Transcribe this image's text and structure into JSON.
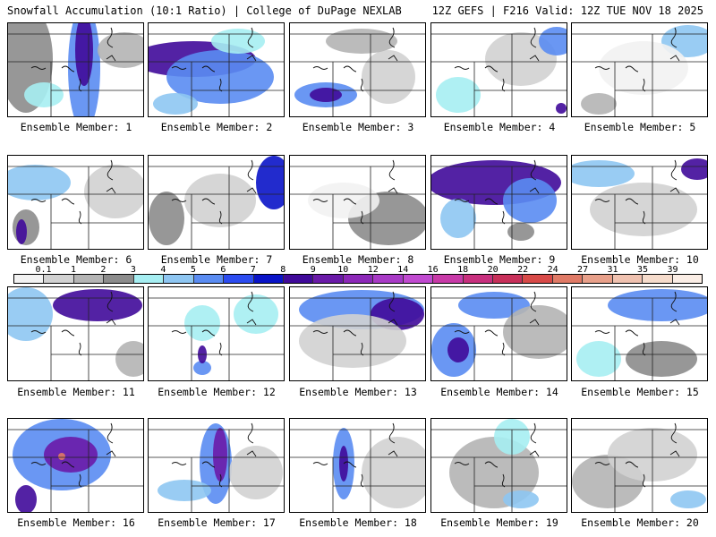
{
  "header": {
    "left": "Snowfall Accumulation (10:1 Ratio) | College of DuPage NEXLAB",
    "right": "12Z GEFS | F216 Valid: 12Z TUE NOV 18 2025"
  },
  "colorbar": {
    "labels": [
      "0.1",
      "1",
      "2",
      "3",
      "4",
      "5",
      "6",
      "7",
      "8",
      "9",
      "10",
      "12",
      "14",
      "16",
      "18",
      "20",
      "22",
      "24",
      "27",
      "31",
      "35",
      "39"
    ],
    "colors": [
      "#f2f2f2",
      "#d2d2d2",
      "#b4b4b4",
      "#8c8c8c",
      "#a6eef2",
      "#8ec6f2",
      "#5a8cf2",
      "#2c4cf0",
      "#0a14c8",
      "#400a9a",
      "#6a1aa8",
      "#8c28b8",
      "#a83ac6",
      "#c04ad0",
      "#c83aa8",
      "#c8307e",
      "#c8305a",
      "#d84a48",
      "#e07a66",
      "#e8a08a",
      "#f0c2b0",
      "#f6dccc",
      "#fbeee6"
    ]
  },
  "members": [
    {
      "label": "Ensemble Member: 1"
    },
    {
      "label": "Ensemble Member: 2"
    },
    {
      "label": "Ensemble Member: 3"
    },
    {
      "label": "Ensemble Member: 4"
    },
    {
      "label": "Ensemble Member: 5"
    },
    {
      "label": "Ensemble Member: 6"
    },
    {
      "label": "Ensemble Member: 7"
    },
    {
      "label": "Ensemble Member: 8"
    },
    {
      "label": "Ensemble Member: 9"
    },
    {
      "label": "Ensemble Member: 10"
    },
    {
      "label": "Ensemble Member: 11"
    },
    {
      "label": "Ensemble Member: 12"
    },
    {
      "label": "Ensemble Member: 13"
    },
    {
      "label": "Ensemble Member: 14"
    },
    {
      "label": "Ensemble Member: 15"
    },
    {
      "label": "Ensemble Member: 16"
    },
    {
      "label": "Ensemble Member: 17"
    },
    {
      "label": "Ensemble Member: 18"
    },
    {
      "label": "Ensemble Member: 19"
    },
    {
      "label": "Ensemble Member: 20"
    }
  ]
}
